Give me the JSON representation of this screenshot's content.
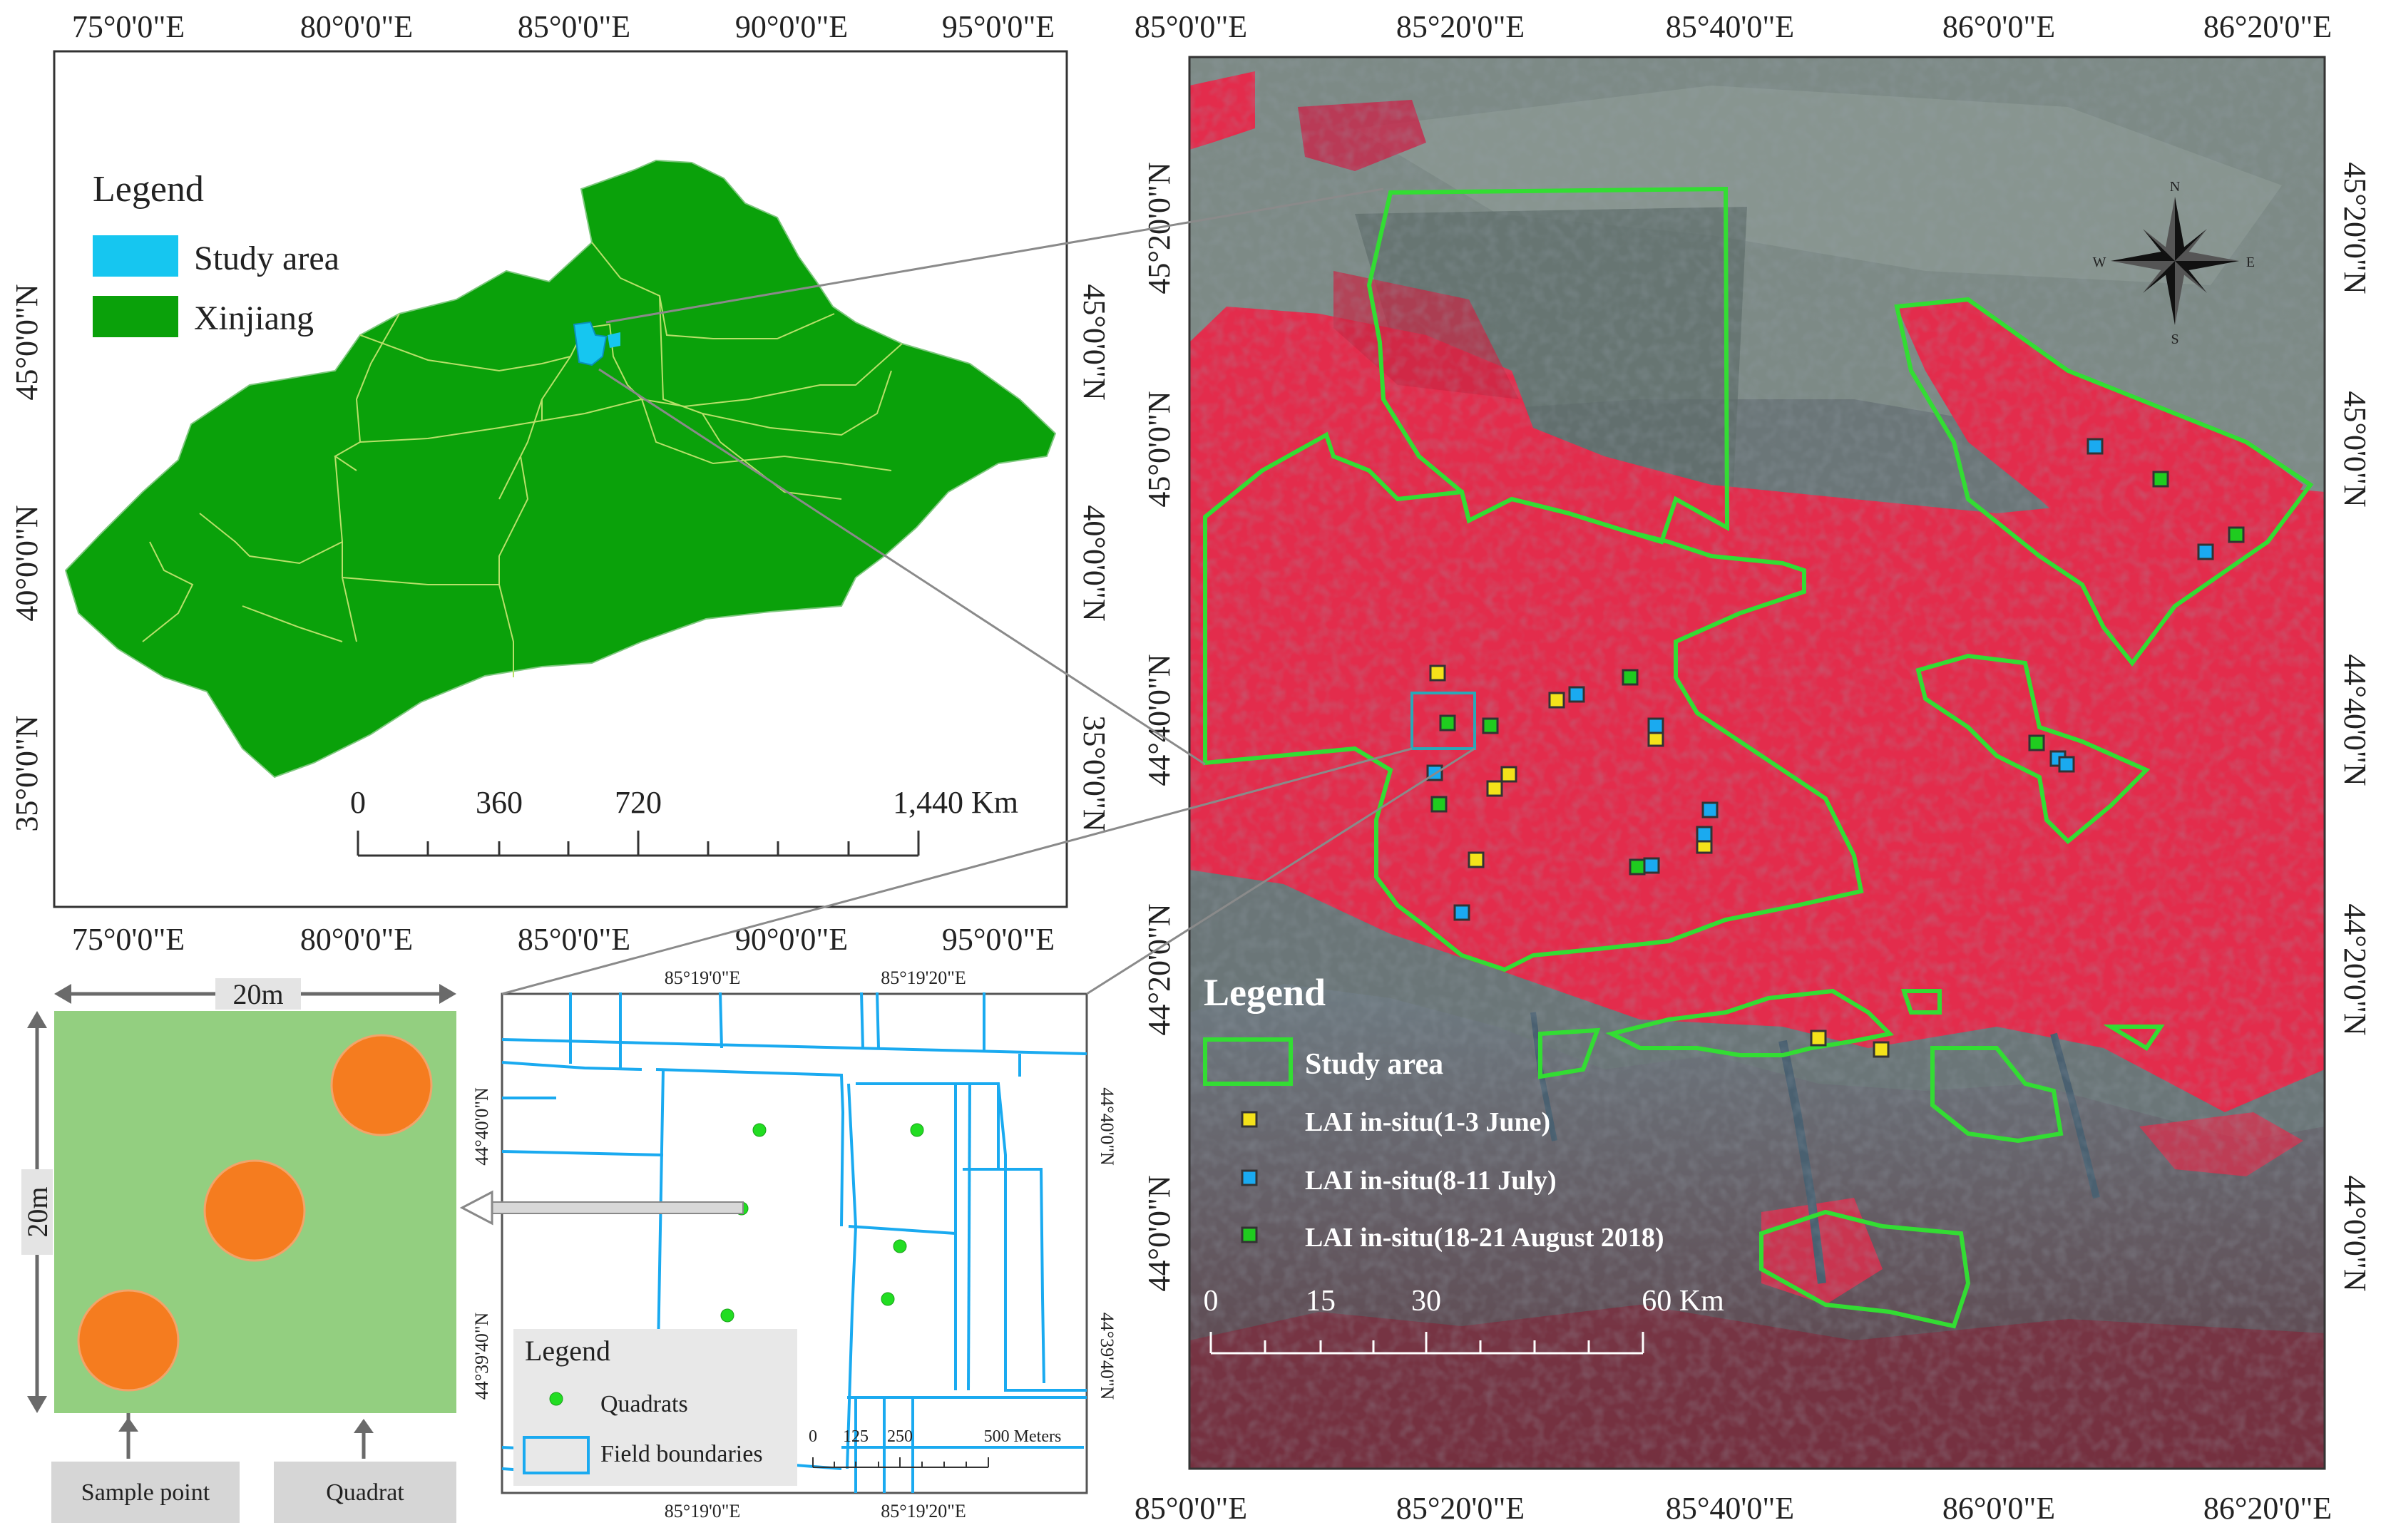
{
  "overview_map": {
    "top_lon_labels": [
      "75°0'0\"E",
      "80°0'0\"E",
      "85°0'0\"E",
      "90°0'0\"E",
      "95°0'0\"E"
    ],
    "bottom_lon_labels": [
      "75°0'0\"E",
      "80°0'0\"E",
      "85°0'0\"E",
      "90°0'0\"E",
      "95°0'0\"E"
    ],
    "left_lat_labels": [
      "45°0'0\"N",
      "40°0'0\"N",
      "35°0'0\"N"
    ],
    "right_lat_labels": [
      "45°0'0\"N",
      "40°0'0\"N",
      "35°0'0\"N"
    ],
    "legend": {
      "title": "Legend",
      "items": [
        {
          "label": "Study area",
          "color": "#16c6f0"
        },
        {
          "label": "Xinjiang",
          "color": "#0aa10a"
        }
      ]
    },
    "scale_bar": {
      "ticks": [
        "0",
        "360",
        "720",
        "1,440 Km"
      ]
    }
  },
  "study_area_map": {
    "top_lon_labels": [
      "85°0'0\"E",
      "85°20'0\"E",
      "85°40'0\"E",
      "86°0'0\"E",
      "86°20'0\"E"
    ],
    "bottom_lon_labels": [
      "85°0'0\"E",
      "85°20'0\"E",
      "85°40'0\"E",
      "86°0'0\"E",
      "86°20'0\"E"
    ],
    "left_lat_labels": [
      "45°20'0\"N",
      "45°0'0\"N",
      "44°40'0\"N",
      "44°20'0\"N",
      "44°0'0\"N"
    ],
    "right_lat_labels": [
      "45°20'0\"N",
      "45°0'0\"N",
      "44°40'0\"N",
      "44°20'0\"N",
      "44°0'0\"N"
    ],
    "north_arrow": {
      "n": "N",
      "s": "S",
      "e": "E",
      "w": "W"
    },
    "legend": {
      "title": "Legend",
      "items": [
        {
          "label": "Study area",
          "color": "#33dd33"
        },
        {
          "label": "LAI in-situ(1-3 June)",
          "color": "#f4e21a"
        },
        {
          "label": "LAI in-situ(8-11 July)",
          "color": "#1aaaf0"
        },
        {
          "label": "LAI in-situ(18-21 August 2018)",
          "color": "#1fcc1f"
        }
      ]
    },
    "scale_bar": {
      "ticks": [
        "0",
        "15",
        "30",
        "60 Km"
      ]
    }
  },
  "field_map": {
    "top_lon_labels": [
      "85°19'0\"E",
      "85°19'20\"E"
    ],
    "bottom_lon_labels": [
      "85°19'0\"E",
      "85°19'20\"E"
    ],
    "left_lat_labels": [
      "44°40'0\"N",
      "44°39'40\"N"
    ],
    "right_lat_labels": [
      "44°40'0\"N",
      "44°39'40\"N"
    ],
    "legend": {
      "title": "Legend",
      "items": [
        {
          "label": "Quadrats",
          "color": "#22dd22"
        },
        {
          "label": "Field boundaries",
          "color": "#1aaaf0"
        }
      ]
    },
    "scale_bar": {
      "ticks": [
        "0",
        "125",
        "250",
        "500 Meters"
      ]
    }
  },
  "quadrat_diagram": {
    "width_label": "20m",
    "height_label": "20m",
    "sample_point_label": "Sample point",
    "quadrat_label": "Quadrat",
    "colors": {
      "quadrat": "#93cf80",
      "sample_point": "#f57c1f"
    }
  }
}
